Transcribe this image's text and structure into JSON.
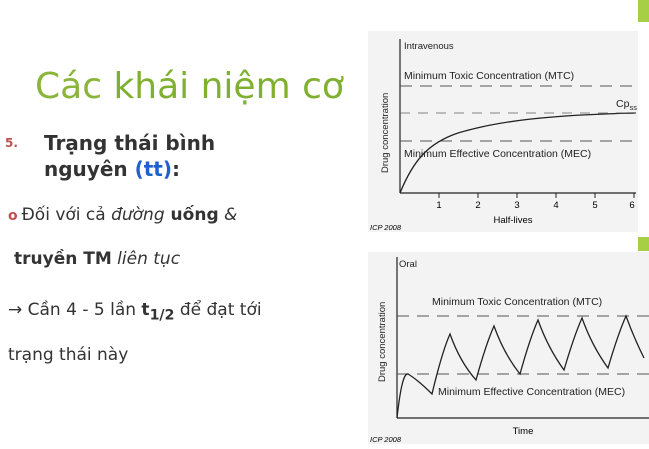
{
  "title": {
    "part1": "Các ",
    "part2": "khái niệm cơ"
  },
  "section": {
    "number": "5.",
    "heading_line1": "Trạng thái bình",
    "heading_line2_a": "nguyên ",
    "heading_paren_open": "(",
    "heading_abbrev": "tt",
    "heading_paren_close": ")",
    "heading_colon": ":"
  },
  "bullet": {
    "marker": "o",
    "prefix": "Đối với cả ",
    "route1": "đường",
    "route1_bold": " uống",
    "conj": " &",
    "route2_bold": "truyền TM",
    "route2_italic": " liên tục"
  },
  "conclusion": {
    "arrow": "→ Cần 4 - 5 lần ",
    "t_symbol": "t",
    "t_sub": "1/2",
    "rest": " để đạt tới",
    "line2": "trạng thái này"
  },
  "charts": {
    "iv": {
      "label": "Intravenous",
      "mtc": "Minimum Toxic Concentration (MTC)",
      "mec": "Minimum Effective Concentration (MEC)",
      "cpss": "Cp",
      "cpss_sub": "ss",
      "ylabel": "Drug concentration",
      "xlabel": "Half-lives",
      "ticks": [
        "1",
        "2",
        "3",
        "4",
        "5",
        "6"
      ],
      "credit": "ICP 2008"
    },
    "oral": {
      "label": "Oral",
      "mtc": "Minimum Toxic Concentration (MTC)",
      "mec": "Minimum Effective Concentration (MEC)",
      "ylabel": "Drug concentration",
      "xlabel": "Time",
      "credit": "ICP 2008"
    }
  },
  "colors": {
    "accent": "#a6cf46",
    "title": "#8ab53a",
    "number": "#c0504d",
    "abbrev": "#1f5fd0"
  }
}
